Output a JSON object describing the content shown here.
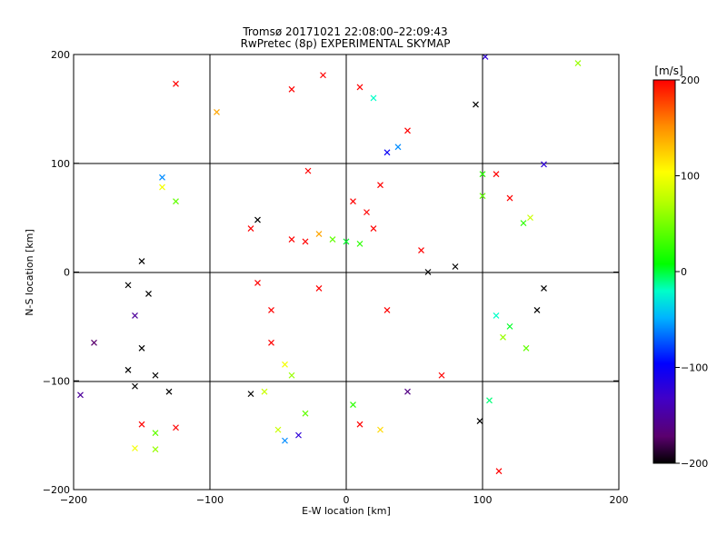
{
  "chart_data": {
    "type": "scatter",
    "title": "Tromsø 20171021 22:08:00–22:09:43",
    "subtitle": "RwPretec (8p) EXPERIMENTAL SKYMAP",
    "xlabel": "E-W location [km]",
    "ylabel": "N-S location [km]",
    "xlim": [
      -200,
      200
    ],
    "ylim": [
      -200,
      200
    ],
    "x_ticks": [
      -200,
      -100,
      0,
      100,
      200
    ],
    "y_ticks": [
      -200,
      -100,
      0,
      100,
      200
    ],
    "grid": true,
    "colorbar": {
      "label": "[m/s]",
      "range": [
        -200,
        200
      ],
      "ticks": [
        200,
        100,
        0,
        -100,
        -200
      ],
      "colormap": "rainbow"
    },
    "markers": [
      "x",
      "dot"
    ],
    "sample_points": [
      {
        "x": -125,
        "y": 173,
        "v": 200,
        "m": "x"
      },
      {
        "x": -95,
        "y": 147,
        "v": 140,
        "m": "x"
      },
      {
        "x": -40,
        "y": 168,
        "v": 200,
        "m": "x"
      },
      {
        "x": -17,
        "y": 181,
        "v": 200,
        "m": "x"
      },
      {
        "x": 102,
        "y": 198,
        "v": -120,
        "m": "x"
      },
      {
        "x": 95,
        "y": 154,
        "v": -200,
        "m": "x"
      },
      {
        "x": 145,
        "y": 99,
        "v": -120,
        "m": "x"
      },
      {
        "x": -28,
        "y": 93,
        "v": 200,
        "m": "x"
      },
      {
        "x": -125,
        "y": 65,
        "v": 40,
        "m": "x"
      },
      {
        "x": -135,
        "y": 78,
        "v": 100,
        "m": "x"
      },
      {
        "x": -135,
        "y": 87,
        "v": -60,
        "m": "x"
      },
      {
        "x": -150,
        "y": 10,
        "v": -200,
        "m": "x"
      },
      {
        "x": -160,
        "y": -12,
        "v": -200,
        "m": "x"
      },
      {
        "x": -145,
        "y": -20,
        "v": -200,
        "m": "x"
      },
      {
        "x": -155,
        "y": -40,
        "v": -150,
        "m": "x"
      },
      {
        "x": -185,
        "y": -65,
        "v": -170,
        "m": "x"
      },
      {
        "x": -195,
        "y": -113,
        "v": -150,
        "m": "x"
      },
      {
        "x": -150,
        "y": -70,
        "v": -200,
        "m": "x"
      },
      {
        "x": -160,
        "y": -90,
        "v": -200,
        "m": "x"
      },
      {
        "x": -140,
        "y": -95,
        "v": -200,
        "m": "x"
      },
      {
        "x": -155,
        "y": -105,
        "v": -200,
        "m": "x"
      },
      {
        "x": -130,
        "y": -110,
        "v": -200,
        "m": "x"
      },
      {
        "x": -150,
        "y": -140,
        "v": 200,
        "m": "x"
      },
      {
        "x": -140,
        "y": -148,
        "v": 40,
        "m": "x"
      },
      {
        "x": -125,
        "y": -143,
        "v": 200,
        "m": "x"
      },
      {
        "x": -155,
        "y": -162,
        "v": 100,
        "m": "x"
      },
      {
        "x": -140,
        "y": -163,
        "v": 60,
        "m": "x"
      },
      {
        "x": -70,
        "y": -112,
        "v": -200,
        "m": "x"
      },
      {
        "x": -60,
        "y": -110,
        "v": 80,
        "m": "x"
      },
      {
        "x": -45,
        "y": -85,
        "v": 100,
        "m": "x"
      },
      {
        "x": -40,
        "y": -95,
        "v": 60,
        "m": "x"
      },
      {
        "x": -55,
        "y": -65,
        "v": 200,
        "m": "x"
      },
      {
        "x": -35,
        "y": -150,
        "v": -120,
        "m": "x"
      },
      {
        "x": -45,
        "y": -155,
        "v": -60,
        "m": "x"
      },
      {
        "x": -50,
        "y": -145,
        "v": 80,
        "m": "x"
      },
      {
        "x": -30,
        "y": -130,
        "v": 40,
        "m": "x"
      },
      {
        "x": 10,
        "y": -140,
        "v": 200,
        "m": "x"
      },
      {
        "x": 25,
        "y": -145,
        "v": 120,
        "m": "x"
      },
      {
        "x": 5,
        "y": -122,
        "v": 20,
        "m": "x"
      },
      {
        "x": 45,
        "y": -110,
        "v": -160,
        "m": "x"
      },
      {
        "x": 70,
        "y": -95,
        "v": 200,
        "m": "x"
      },
      {
        "x": 105,
        "y": -118,
        "v": -10,
        "m": "x"
      },
      {
        "x": 112,
        "y": -183,
        "v": 200,
        "m": "x"
      },
      {
        "x": 98,
        "y": -137,
        "v": -200,
        "m": "x"
      },
      {
        "x": 115,
        "y": -60,
        "v": 60,
        "m": "x"
      },
      {
        "x": 110,
        "y": -40,
        "v": -20,
        "m": "x"
      },
      {
        "x": 120,
        "y": -50,
        "v": 0,
        "m": "x"
      },
      {
        "x": 132,
        "y": -70,
        "v": 40,
        "m": "x"
      },
      {
        "x": 140,
        "y": -35,
        "v": -200,
        "m": "x"
      },
      {
        "x": 145,
        "y": -15,
        "v": -200,
        "m": "x"
      },
      {
        "x": 130,
        "y": 45,
        "v": 20,
        "m": "x"
      },
      {
        "x": 135,
        "y": 50,
        "v": 80,
        "m": "x"
      },
      {
        "x": 120,
        "y": 68,
        "v": 200,
        "m": "x"
      },
      {
        "x": 110,
        "y": 90,
        "v": 200,
        "m": "x"
      },
      {
        "x": 100,
        "y": 90,
        "v": 20,
        "m": "x"
      },
      {
        "x": 100,
        "y": 70,
        "v": 40,
        "m": "x"
      },
      {
        "x": 170,
        "y": 192,
        "v": 60,
        "m": "x"
      },
      {
        "x": -70,
        "y": 40,
        "v": 200,
        "m": "x"
      },
      {
        "x": -65,
        "y": 48,
        "v": -200,
        "m": "x"
      },
      {
        "x": -30,
        "y": 28,
        "v": 200,
        "m": "x"
      },
      {
        "x": -40,
        "y": 30,
        "v": 200,
        "m": "x"
      },
      {
        "x": -20,
        "y": 35,
        "v": 140,
        "m": "x"
      },
      {
        "x": -10,
        "y": 30,
        "v": 40,
        "m": "x"
      },
      {
        "x": 0,
        "y": 28,
        "v": 0,
        "m": "x"
      },
      {
        "x": 10,
        "y": 26,
        "v": 20,
        "m": "x"
      },
      {
        "x": 20,
        "y": 40,
        "v": 200,
        "m": "x"
      },
      {
        "x": 15,
        "y": 55,
        "v": 200,
        "m": "x"
      },
      {
        "x": 5,
        "y": 65,
        "v": 200,
        "m": "x"
      },
      {
        "x": 25,
        "y": 80,
        "v": 200,
        "m": "x"
      },
      {
        "x": 30,
        "y": 110,
        "v": -100,
        "m": "x"
      },
      {
        "x": 38,
        "y": 115,
        "v": -60,
        "m": "x"
      },
      {
        "x": 20,
        "y": 160,
        "v": -20,
        "m": "x"
      },
      {
        "x": 10,
        "y": 170,
        "v": 200,
        "m": "x"
      },
      {
        "x": 45,
        "y": 130,
        "v": 200,
        "m": "x"
      },
      {
        "x": 55,
        "y": 20,
        "v": 200,
        "m": "x"
      },
      {
        "x": 60,
        "y": 0,
        "v": -200,
        "m": "x"
      },
      {
        "x": 80,
        "y": 5,
        "v": -200,
        "m": "x"
      },
      {
        "x": -55,
        "y": -35,
        "v": 200,
        "m": "x"
      },
      {
        "x": -20,
        "y": -15,
        "v": 200,
        "m": "x"
      },
      {
        "x": 30,
        "y": -35,
        "v": 200,
        "m": "x"
      },
      {
        "x": -65,
        "y": -10,
        "v": 200,
        "m": "x"
      }
    ]
  }
}
